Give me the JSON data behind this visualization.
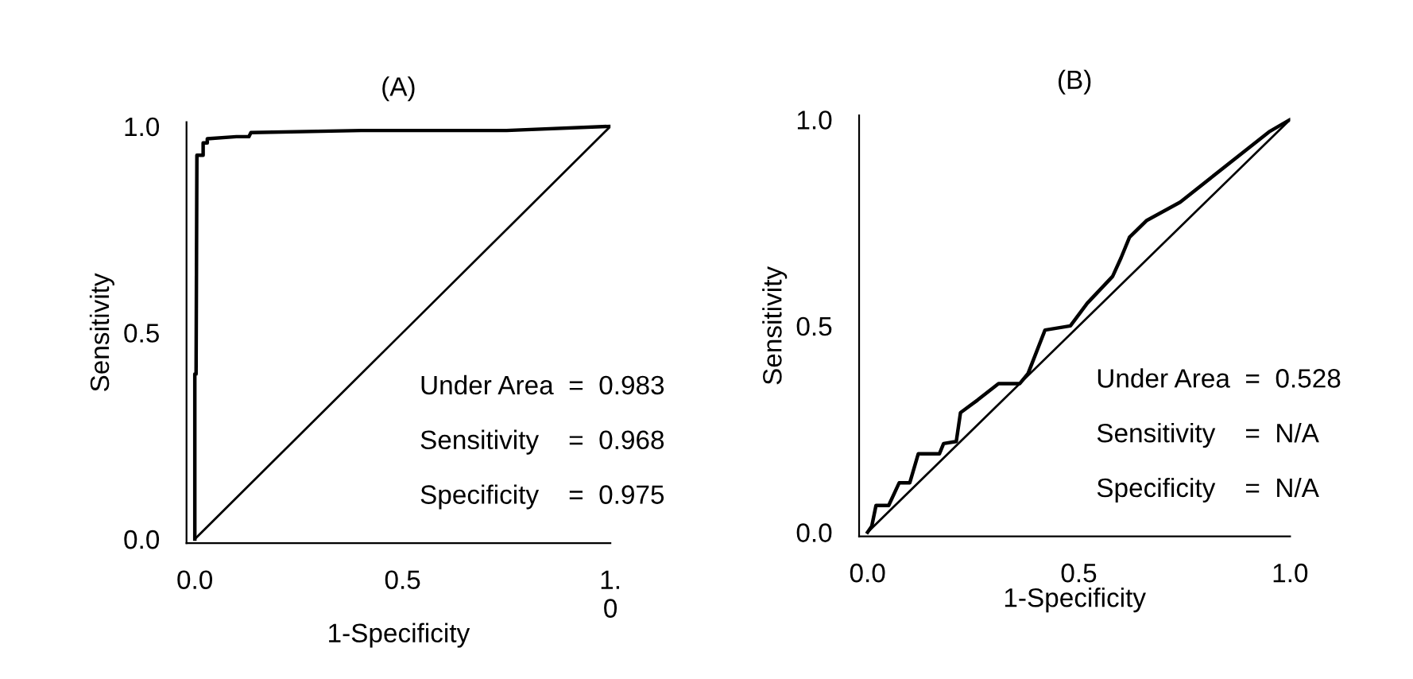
{
  "chart_data": [
    {
      "type": "line",
      "title": "(A)",
      "xlabel": "1-Specificity",
      "ylabel": "Sensitivity",
      "xlim": [
        -0.02,
        1.0
      ],
      "ylim": [
        -0.01,
        1.01
      ],
      "xticks": [
        {
          "value": 0.0,
          "label": "0.0"
        },
        {
          "value": 1.0,
          "label": "1.\n0"
        },
        {
          "value": 0.5,
          "label": "0.5"
        }
      ],
      "yticks": [
        {
          "value": 0.0,
          "label": "0.0"
        },
        {
          "value": 0.5,
          "label": "0.5"
        },
        {
          "value": 1.0,
          "label": "1.0"
        }
      ],
      "grid": false,
      "legend": false,
      "marker": "none",
      "line_style": "solid",
      "series": [
        {
          "color": "#000000",
          "x": [
            0,
            0,
            0.003,
            0.005,
            0.02,
            0.02,
            0.03,
            0.03,
            0.1,
            0.13,
            0.135,
            0.4,
            0.75,
            1
          ],
          "values": [
            0,
            0.4,
            0.4,
            0.93,
            0.93,
            0.96,
            0.96,
            0.97,
            0.975,
            0.975,
            0.985,
            0.99,
            0.99,
            1
          ]
        },
        {
          "color": "#000000",
          "x": [
            0,
            1
          ],
          "values": [
            0,
            1
          ]
        }
      ],
      "annotations": [
        "Under Area  =  0.983",
        "Sensitivity    =  0.968",
        "Specificity    =  0.975"
      ]
    },
    {
      "type": "line",
      "title": "(B)",
      "xlabel": "1-Specificity",
      "ylabel": "Sensitivity",
      "xlim": [
        -0.02,
        1.0
      ],
      "ylim": [
        -0.01,
        1.01
      ],
      "xticks": [
        {
          "value": 0.0,
          "label": "0.0"
        },
        {
          "value": 0.5,
          "label": "0.5"
        },
        {
          "value": 1.0,
          "label": "1.0"
        }
      ],
      "yticks": [
        {
          "value": 0.0,
          "label": "0.0"
        },
        {
          "value": 0.5,
          "label": "0.5"
        },
        {
          "value": 1.0,
          "label": "1.0"
        }
      ],
      "grid": false,
      "legend": false,
      "marker": "none",
      "line_style": "solid",
      "series": [
        {
          "color": "#000000",
          "x": [
            0,
            0.01,
            0.02,
            0.05,
            0.075,
            0.1,
            0.12,
            0.17,
            0.18,
            0.21,
            0.22,
            0.26,
            0.31,
            0.36,
            0.38,
            0.42,
            0.48,
            0.52,
            0.58,
            0.6,
            0.62,
            0.66,
            0.74,
            0.95,
            1
          ],
          "values": [
            0,
            0.015,
            0.065,
            0.065,
            0.12,
            0.12,
            0.19,
            0.19,
            0.215,
            0.22,
            0.29,
            0.32,
            0.36,
            0.36,
            0.385,
            0.49,
            0.5,
            0.555,
            0.62,
            0.665,
            0.715,
            0.755,
            0.8,
            0.97,
            1
          ]
        },
        {
          "color": "#000000",
          "x": [
            0,
            1
          ],
          "values": [
            0,
            1
          ]
        }
      ],
      "annotations": [
        "Under Area  =  0.528",
        "Sensitivity    =  N/A",
        "Specificity    =  N/A"
      ]
    }
  ]
}
